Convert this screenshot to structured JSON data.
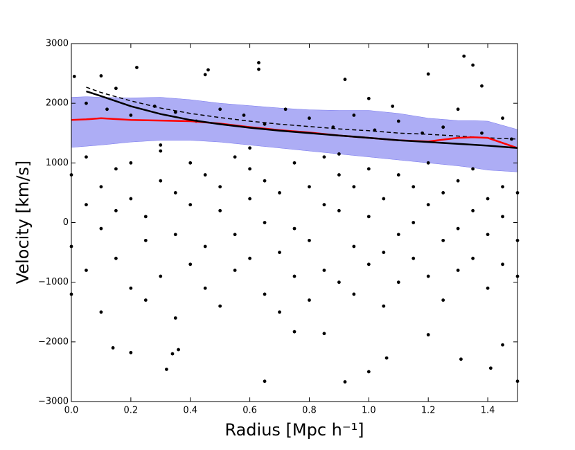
{
  "chart_data": {
    "type": "scatter",
    "x_label": "Radius [Mpc h⁻¹]",
    "y_label": "Velocity [km/s]",
    "xlim": [
      0,
      1.5
    ],
    "ylim": [
      -3000,
      3000
    ],
    "xticks": [
      {
        "value": 0,
        "label": "0.0"
      },
      {
        "value": 0.2,
        "label": "0.2"
      },
      {
        "value": 0.4,
        "label": "0.4"
      },
      {
        "value": 0.6,
        "label": "0.6"
      },
      {
        "value": 0.8,
        "label": "0.8"
      },
      {
        "value": 1.0,
        "label": "1.0"
      },
      {
        "value": 1.2,
        "label": "1.2"
      },
      {
        "value": 1.4,
        "label": "1.4"
      }
    ],
    "yticks": [
      {
        "value": -3000,
        "label": "−3000"
      },
      {
        "value": -2000,
        "label": "−2000"
      },
      {
        "value": -1000,
        "label": "−1000"
      },
      0,
      1000,
      2000,
      3000
    ],
    "point_color": "#000000",
    "points": {
      "x": [
        0.01,
        0.1,
        0.22,
        0.15,
        0.45,
        0.46,
        0.63,
        0.63,
        0.92,
        1.0,
        1.2,
        1.32,
        1.35,
        1.38,
        1.08,
        0.32,
        0.34,
        0.36,
        0.65,
        0.92,
        1.0,
        1.06,
        1.31,
        1.41,
        1.5,
        1.45,
        0.2,
        0.14,
        0.75,
        0.85,
        1.2,
        0.05,
        0.12,
        0.2,
        0.28,
        0.35,
        0.42,
        0.5,
        0.58,
        0.65,
        0.72,
        0.8,
        0.88,
        0.95,
        1.02,
        1.1,
        1.18,
        1.25,
        1.3,
        1.38,
        1.45,
        1.48,
        0.3,
        0.6,
        0.9,
        0.0,
        0.0,
        0.0,
        0.05,
        0.05,
        0.05,
        0.1,
        0.1,
        0.1,
        0.15,
        0.15,
        0.15,
        0.2,
        0.2,
        0.2,
        0.25,
        0.25,
        0.25,
        0.3,
        0.3,
        0.3,
        0.35,
        0.35,
        0.35,
        0.4,
        0.4,
        0.4,
        0.45,
        0.45,
        0.45,
        0.5,
        0.5,
        0.5,
        0.55,
        0.55,
        0.55,
        0.6,
        0.6,
        0.6,
        0.65,
        0.65,
        0.65,
        0.7,
        0.7,
        0.7,
        0.75,
        0.75,
        0.75,
        0.8,
        0.8,
        0.8,
        0.85,
        0.85,
        0.85,
        0.9,
        0.9,
        0.9,
        0.95,
        0.95,
        0.95,
        1.0,
        1.0,
        1.0,
        1.05,
        1.05,
        1.05,
        1.1,
        1.1,
        1.1,
        1.15,
        1.15,
        1.15,
        1.2,
        1.2,
        1.2,
        1.25,
        1.25,
        1.25,
        1.3,
        1.3,
        1.3,
        1.35,
        1.35,
        1.35,
        1.4,
        1.4,
        1.4,
        1.45,
        1.45,
        1.45,
        1.5,
        1.5,
        1.5
      ],
      "y": [
        2450,
        2460,
        2600,
        2250,
        2480,
        2560,
        2680,
        2570,
        2400,
        2080,
        2490,
        2790,
        2640,
        2290,
        1950,
        -2460,
        -2200,
        -2130,
        -2660,
        -2670,
        -2500,
        -2270,
        -2290,
        -2440,
        -2660,
        -2050,
        -2180,
        -2100,
        -1830,
        -1860,
        -1880,
        2000,
        1900,
        1800,
        1950,
        1850,
        1700,
        1900,
        1800,
        1650,
        1900,
        1750,
        1600,
        1800,
        1550,
        1700,
        1500,
        1600,
        1900,
        1500,
        1750,
        1400,
        1300,
        1250,
        1150,
        800,
        -400,
        -1200,
        300,
        1100,
        -800,
        -100,
        600,
        -1500,
        900,
        -600,
        200,
        -1100,
        400,
        1000,
        100,
        -300,
        -1300,
        700,
        -900,
        1200,
        -200,
        500,
        -1600,
        1000,
        -700,
        300,
        -400,
        800,
        -1100,
        200,
        -1400,
        600,
        1100,
        -200,
        -800,
        -600,
        400,
        900,
        0,
        -1200,
        700,
        500,
        -500,
        -1500,
        1000,
        -100,
        -900,
        -300,
        600,
        -1300,
        300,
        -800,
        1100,
        -1000,
        200,
        800,
        600,
        -400,
        -1200,
        100,
        900,
        -700,
        -500,
        400,
        -1400,
        800,
        -200,
        -1000,
        0,
        600,
        -600,
        -900,
        300,
        1000,
        500,
        -300,
        -1300,
        -100,
        700,
        -800,
        200,
        -600,
        900,
        -1100,
        400,
        -200,
        600,
        -700,
        100,
        -300,
        500,
        -900
      ]
    },
    "band": {
      "color": "#7777ee",
      "x": [
        0,
        0.05,
        0.1,
        0.2,
        0.3,
        0.4,
        0.5,
        0.6,
        0.7,
        0.8,
        0.9,
        1.0,
        1.1,
        1.2,
        1.3,
        1.35,
        1.4,
        1.5
      ],
      "upper": [
        2100,
        2110,
        2100,
        2090,
        2100,
        2060,
        2000,
        1960,
        1920,
        1890,
        1880,
        1880,
        1830,
        1750,
        1710,
        1710,
        1700,
        1560
      ],
      "lower": [
        1260,
        1280,
        1300,
        1350,
        1380,
        1380,
        1350,
        1300,
        1250,
        1200,
        1150,
        1100,
        1050,
        1000,
        950,
        920,
        880,
        850
      ]
    },
    "lines": [
      {
        "color": "#000000",
        "dashed": true,
        "x": [
          0.05,
          0.1,
          0.2,
          0.3,
          0.4,
          0.5,
          0.6,
          0.7,
          0.8,
          0.9,
          1.0,
          1.1,
          1.2,
          1.3,
          1.4,
          1.5
        ],
        "values": [
          2270,
          2180,
          2040,
          1920,
          1830,
          1760,
          1700,
          1650,
          1610,
          1570,
          1540,
          1500,
          1480,
          1450,
          1420,
          1400
        ]
      },
      {
        "color": "#ff0000",
        "dashed": false,
        "x": [
          0,
          0.05,
          0.1,
          0.2,
          0.3,
          0.4,
          0.5,
          0.6,
          0.7,
          0.8,
          0.9,
          1.0,
          1.1,
          1.2,
          1.3,
          1.35,
          1.4,
          1.5
        ],
        "values": [
          1720,
          1730,
          1750,
          1720,
          1710,
          1700,
          1660,
          1600,
          1550,
          1510,
          1460,
          1420,
          1380,
          1360,
          1420,
          1430,
          1420,
          1250
        ]
      },
      {
        "color": "#000000",
        "dashed": false,
        "x": [
          0.05,
          0.1,
          0.2,
          0.3,
          0.4,
          0.5,
          0.6,
          0.7,
          0.8,
          0.9,
          1.0,
          1.1,
          1.2,
          1.3,
          1.4,
          1.5
        ],
        "values": [
          2200,
          2120,
          1950,
          1820,
          1720,
          1650,
          1590,
          1540,
          1500,
          1460,
          1420,
          1380,
          1350,
          1320,
          1290,
          1250
        ]
      }
    ]
  }
}
